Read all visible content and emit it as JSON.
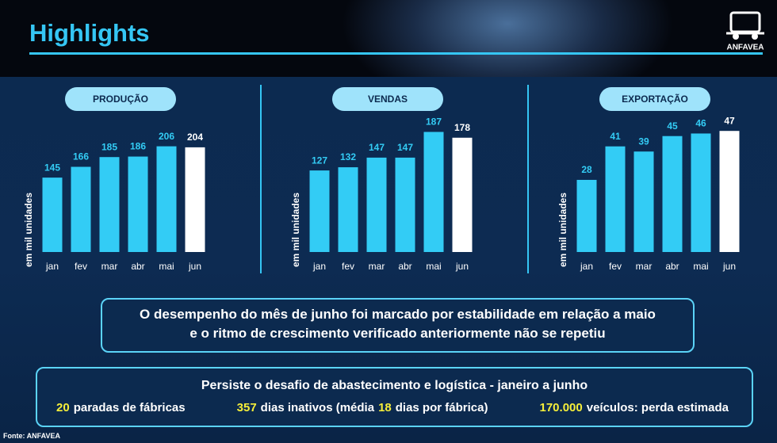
{
  "header": {
    "title": "Highlights",
    "logo": "ANFAVEA"
  },
  "chart_data": [
    {
      "type": "bar",
      "title": "PRODUÇÃO",
      "y_label": "em mil unidades",
      "categories": [
        "jan",
        "fev",
        "mar",
        "abr",
        "mai",
        "jun"
      ],
      "values": [
        145,
        166,
        185,
        186,
        206,
        204
      ],
      "colors": [
        "#33ccf5",
        "#33ccf5",
        "#33ccf5",
        "#33ccf5",
        "#33ccf5",
        "#ffffff"
      ],
      "ylim": [
        0,
        244
      ]
    },
    {
      "type": "bar",
      "title": "VENDAS",
      "y_label": "em mil unidades",
      "categories": [
        "jan",
        "fev",
        "mar",
        "abr",
        "mai",
        "jun"
      ],
      "values": [
        127,
        132,
        147,
        147,
        187,
        178
      ],
      "colors": [
        "#33ccf5",
        "#33ccf5",
        "#33ccf5",
        "#33ccf5",
        "#33ccf5",
        "#ffffff"
      ],
      "ylim": [
        0,
        195
      ]
    },
    {
      "type": "bar",
      "title": "EXPORTAÇÃO",
      "y_label": "em mil unidades",
      "categories": [
        "jan",
        "fev",
        "mar",
        "abr",
        "mai",
        "jun"
      ],
      "values": [
        28,
        41,
        39,
        45,
        46,
        47
      ],
      "colors": [
        "#33ccf5",
        "#33ccf5",
        "#33ccf5",
        "#33ccf5",
        "#33ccf5",
        "#ffffff"
      ],
      "ylim": [
        0,
        48.6
      ]
    }
  ],
  "summary": {
    "lines": [
      "O desempenho do mês de junho foi marcado por estabilidade em relação a maio",
      "e o ritmo de crescimento verificado anteriormente não se repetiu"
    ]
  },
  "challenge": {
    "title": "Persiste o desafio de  abastecimento e logística - janeiro a junho",
    "stats": [
      [
        "20",
        "paradas de fábricas"
      ],
      [
        "357",
        "dias inativos (média",
        "18",
        "dias por fábrica)"
      ],
      [
        "170.000",
        "veículos: perda estimada"
      ]
    ]
  },
  "source": "Fonte: ANFAVEA"
}
